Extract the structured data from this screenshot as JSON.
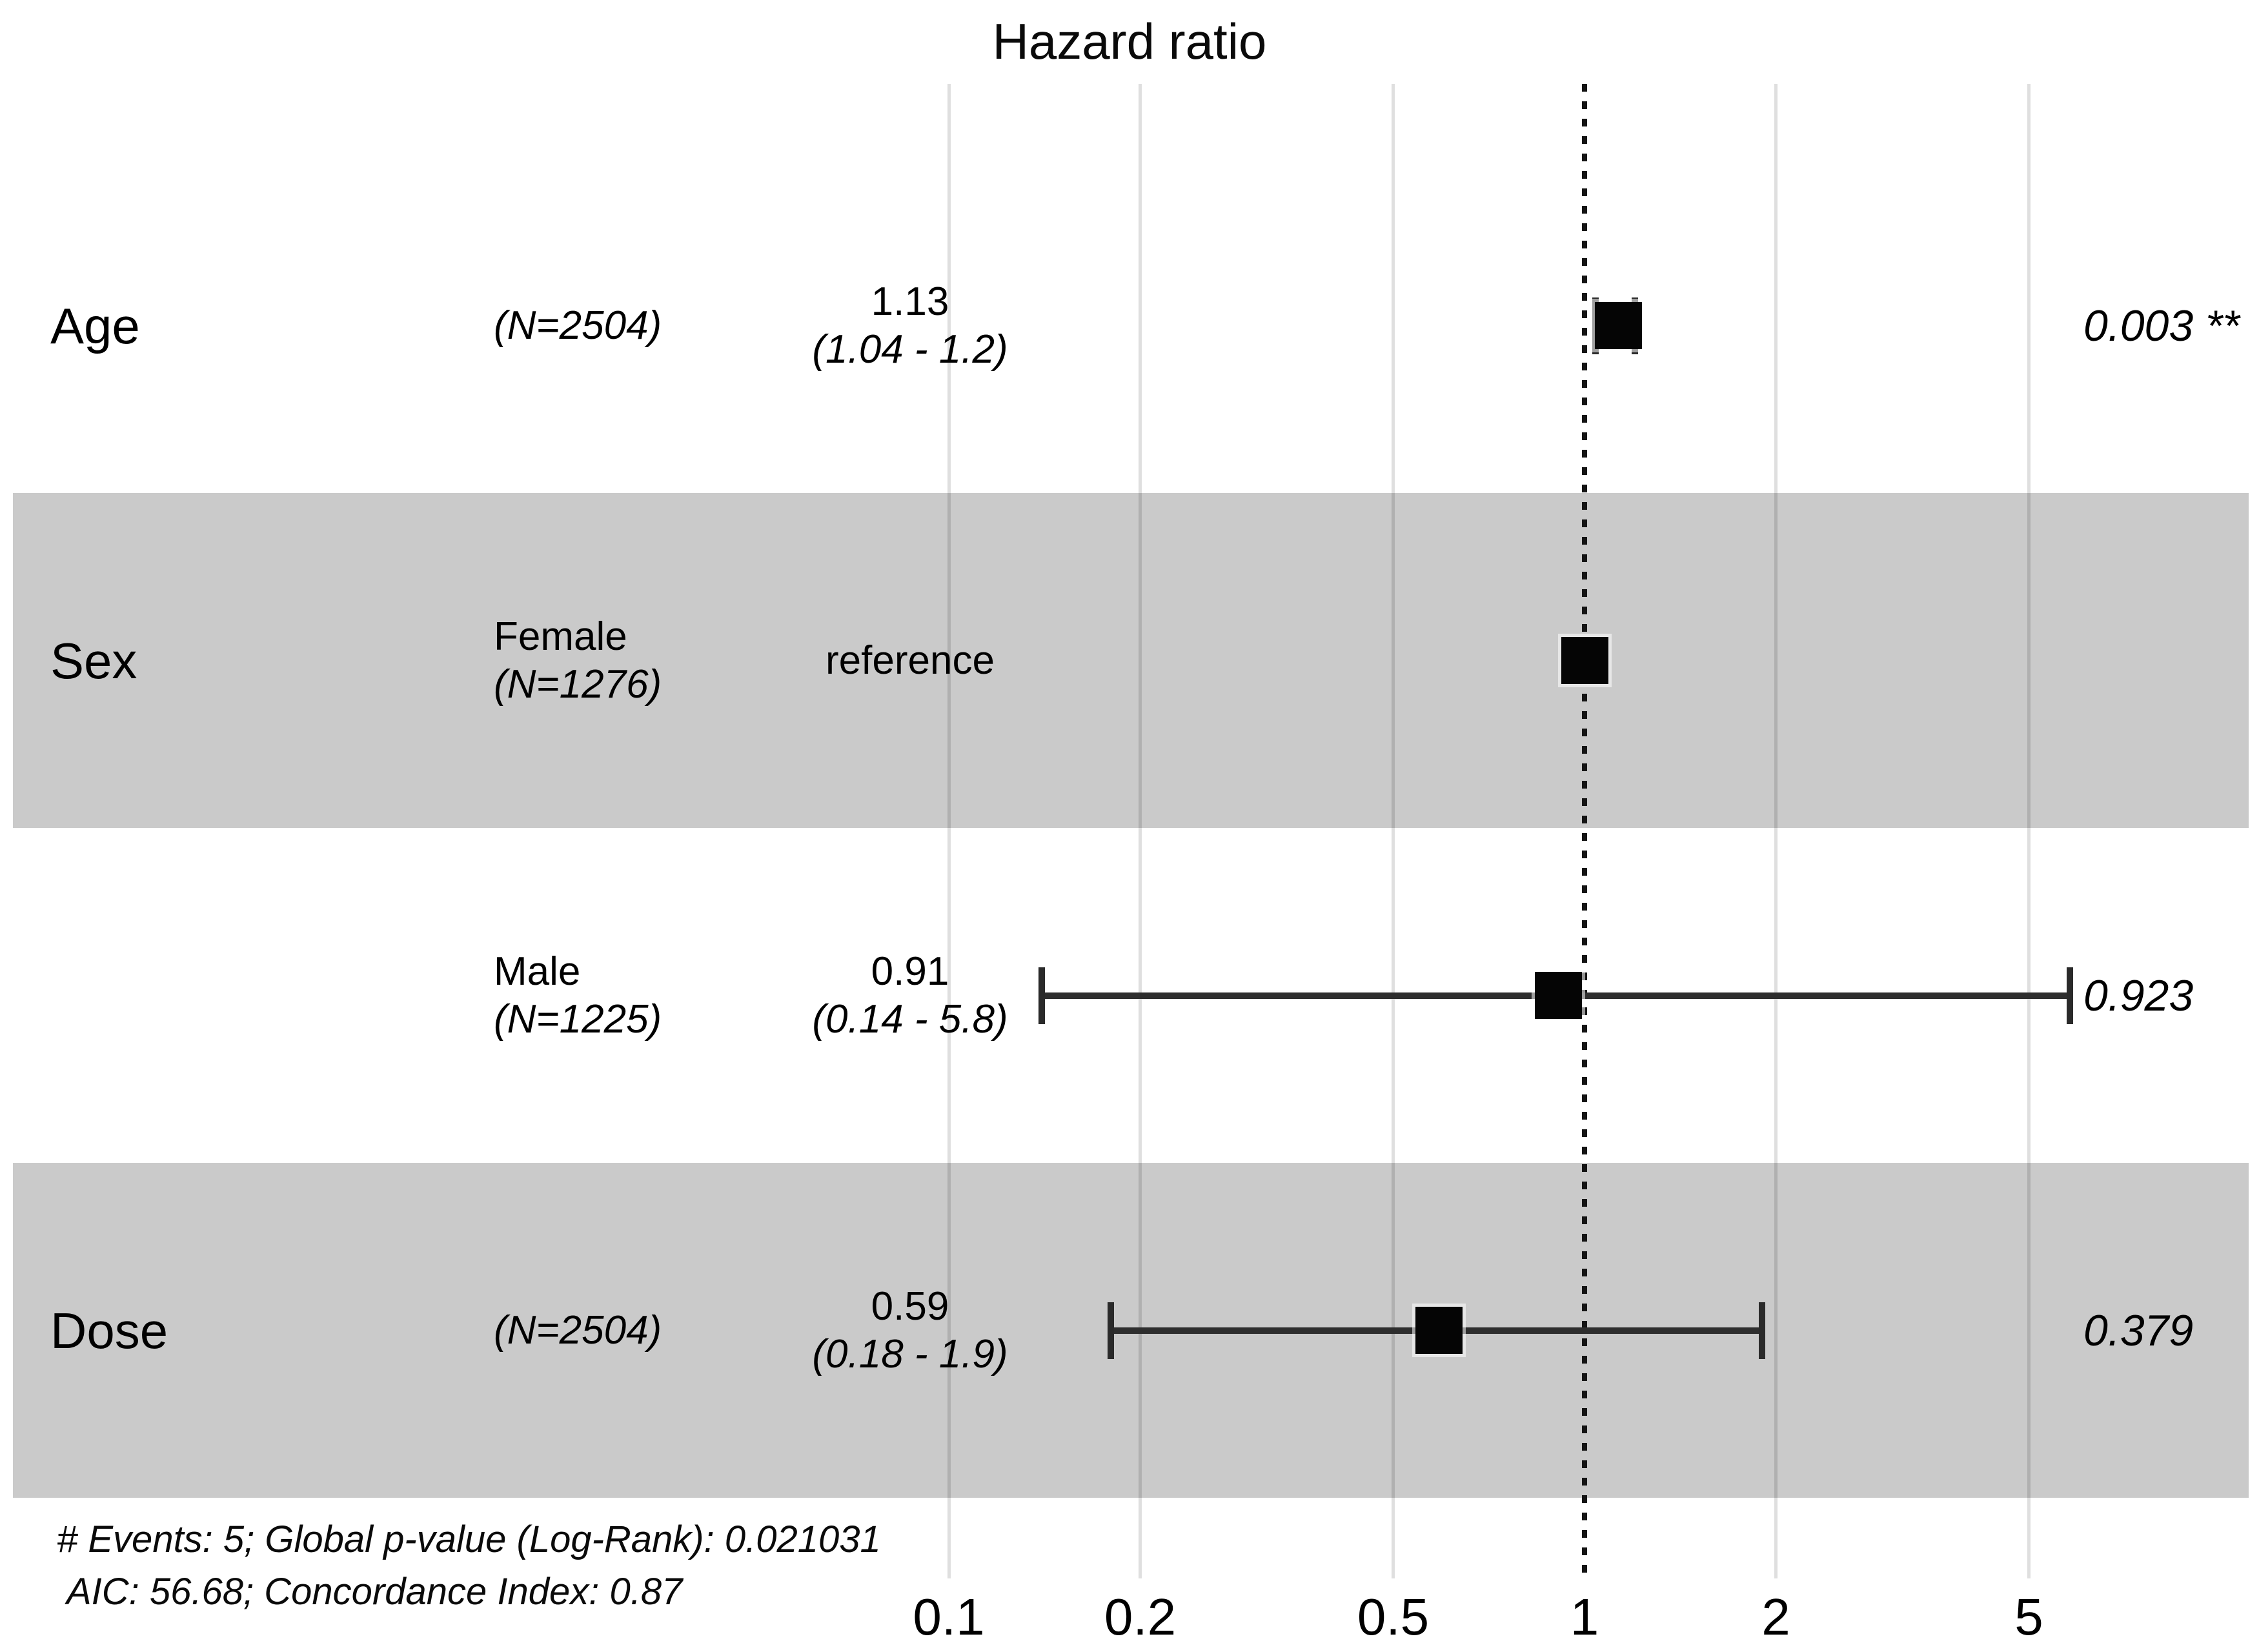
{
  "title": "Hazard ratio",
  "chart_data": {
    "type": "forest",
    "title": "Hazard ratio",
    "x_scale": "log10",
    "xlim": [
      0.07,
      8
    ],
    "reference_value": 1,
    "grid": true,
    "x_ticks": [
      {
        "value": 0.1,
        "label": "0.1"
      },
      {
        "value": 0.2,
        "label": "0.2"
      },
      {
        "value": 0.5,
        "label": "0.5"
      },
      {
        "value": 1,
        "label": "1"
      },
      {
        "value": 2,
        "label": "2"
      },
      {
        "value": 5,
        "label": "5"
      }
    ],
    "rows": [
      {
        "variable": "Age",
        "level": "",
        "n_label": "(N=2504)",
        "estimate_label": "1.13",
        "ci_label": "(1.04 - 1.2)",
        "hr": 1.13,
        "ci_low": 1.04,
        "ci_high": 1.2,
        "p_label": "0.003 **",
        "reference": false,
        "band": false
      },
      {
        "variable": "Sex",
        "level": "Female",
        "n_label": "(N=1276)",
        "estimate_label": "reference",
        "ci_label": "",
        "hr": 1,
        "ci_low": null,
        "ci_high": null,
        "p_label": "",
        "reference": true,
        "band": true
      },
      {
        "variable": "",
        "level": "Male",
        "n_label": "(N=1225)",
        "estimate_label": "0.91",
        "ci_label": "(0.14 - 5.8)",
        "hr": 0.91,
        "ci_low": 0.14,
        "ci_high": 5.8,
        "p_label": "0.923",
        "reference": false,
        "band": false
      },
      {
        "variable": "Dose",
        "level": "",
        "n_label": "(N=2504)",
        "estimate_label": "0.59",
        "ci_label": "(0.18 - 1.9)",
        "hr": 0.59,
        "ci_low": 0.18,
        "ci_high": 1.9,
        "p_label": "0.379",
        "reference": false,
        "band": true
      }
    ],
    "footnotes": [
      "# Events: 5; Global p-value (Log-Rank): 0.021031",
      "AIC: 56.68; Concordance Index: 0.87"
    ]
  }
}
